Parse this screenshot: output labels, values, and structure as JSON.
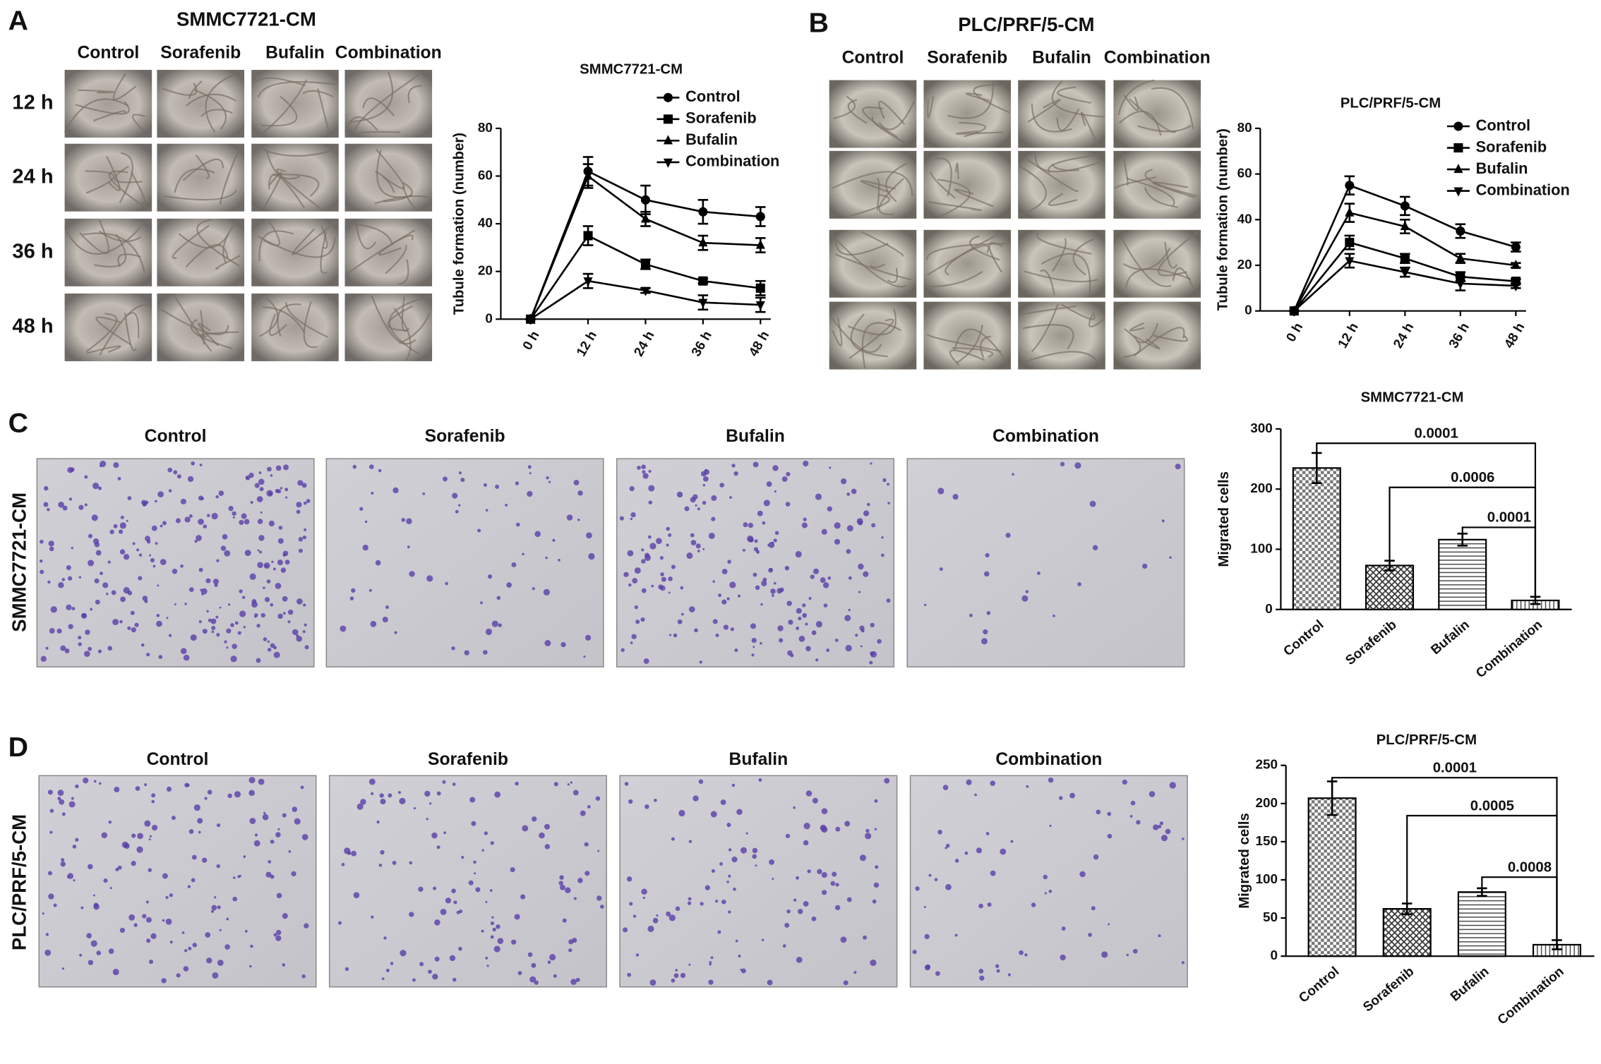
{
  "panels": {
    "A": {
      "label": "A",
      "title": "SMMC7721-CM",
      "columns": [
        "Control",
        "Sorafenib",
        "Bufalin",
        "Combination"
      ],
      "rows": [
        "12 h",
        "24 h",
        "36 h",
        "48 h"
      ]
    },
    "B": {
      "label": "B",
      "title": "PLC/PRF/5-CM",
      "columns": [
        "Control",
        "Sorafenib",
        "Bufalin",
        "Combination"
      ]
    },
    "C": {
      "label": "C",
      "side_label": "SMMC7721-CM",
      "columns": [
        "Control",
        "Sorafenib",
        "Bufalin",
        "Combination"
      ]
    },
    "D": {
      "label": "D",
      "side_label": "PLC/PRF/5-CM",
      "columns": [
        "Control",
        "Sorafenib",
        "Bufalin",
        "Combination"
      ]
    }
  },
  "chart_data": [
    {
      "type": "line",
      "title": "SMMC7721-CM",
      "y_label": "Tubule formation (number)",
      "categories": [
        "0 h",
        "12 h",
        "24 h",
        "36 h",
        "48 h"
      ],
      "ylim": [
        0,
        80
      ],
      "yticks": [
        0,
        20,
        40,
        60,
        80
      ],
      "legend": "upper right",
      "series": [
        {
          "name": "Control",
          "color": "#000000",
          "marker": "circle",
          "values": [
            0,
            62,
            50,
            45,
            43
          ],
          "errors": [
            0,
            6,
            6,
            5,
            4
          ]
        },
        {
          "name": "Sorafenib",
          "color": "#000000",
          "marker": "square",
          "values": [
            0,
            35,
            23,
            16,
            13
          ],
          "errors": [
            0,
            4,
            2,
            1,
            3
          ]
        },
        {
          "name": "Bufalin",
          "color": "#000000",
          "marker": "triangle",
          "values": [
            0,
            60,
            42,
            32,
            31
          ],
          "errors": [
            0,
            5,
            3,
            3,
            3
          ]
        },
        {
          "name": "Combination",
          "color": "#000000",
          "marker": "triangle-down",
          "values": [
            0,
            16,
            12,
            7,
            6
          ],
          "errors": [
            0,
            3,
            1,
            3,
            3
          ]
        }
      ]
    },
    {
      "type": "line",
      "title": "PLC/PRF/5-CM",
      "y_label": "Tubule formation (number)",
      "categories": [
        "0 h",
        "12 h",
        "24 h",
        "36 h",
        "48 h"
      ],
      "ylim": [
        0,
        80
      ],
      "yticks": [
        0,
        20,
        40,
        60,
        80
      ],
      "legend": "upper right",
      "series": [
        {
          "name": "Control",
          "color": "#000000",
          "marker": "circle",
          "values": [
            0,
            55,
            46,
            35,
            28
          ],
          "errors": [
            0,
            4,
            4,
            3,
            2
          ]
        },
        {
          "name": "Sorafenib",
          "color": "#000000",
          "marker": "square",
          "values": [
            0,
            30,
            23,
            15,
            13
          ],
          "errors": [
            0,
            3,
            2,
            2,
            1
          ]
        },
        {
          "name": "Bufalin",
          "color": "#000000",
          "marker": "triangle",
          "values": [
            0,
            43,
            37,
            23,
            20
          ],
          "errors": [
            0,
            4,
            3,
            2,
            1
          ]
        },
        {
          "name": "Combination",
          "color": "#000000",
          "marker": "triangle-down",
          "values": [
            0,
            22,
            17,
            12,
            11
          ],
          "errors": [
            0,
            3,
            2,
            3,
            1
          ]
        }
      ]
    },
    {
      "type": "bar",
      "title": "SMMC7721-CM",
      "y_label": "Migrated cells",
      "categories": [
        "Control",
        "Sorafenib",
        "Bufalin",
        "Combination"
      ],
      "values": [
        235,
        73,
        116,
        15
      ],
      "errors": [
        25,
        8,
        10,
        6
      ],
      "color": "#000000",
      "ylim": [
        0,
        300
      ],
      "yticks": [
        0,
        100,
        200,
        300
      ],
      "annotations": [
        "0.0001",
        "0.0006",
        "0.0001"
      ]
    },
    {
      "type": "bar",
      "title": "PLC/PRF/5-CM",
      "y_label": "Migrated cells",
      "categories": [
        "Control",
        "Sorafenib",
        "Bufalin",
        "Combination"
      ],
      "values": [
        207,
        62,
        84,
        15
      ],
      "errors": [
        22,
        7,
        5,
        6
      ],
      "color": "#000000",
      "ylim": [
        0,
        250
      ],
      "yticks": [
        0,
        50,
        100,
        150,
        200,
        250
      ],
      "annotations": [
        "0.0001",
        "0.0005",
        "0.0008"
      ]
    }
  ]
}
